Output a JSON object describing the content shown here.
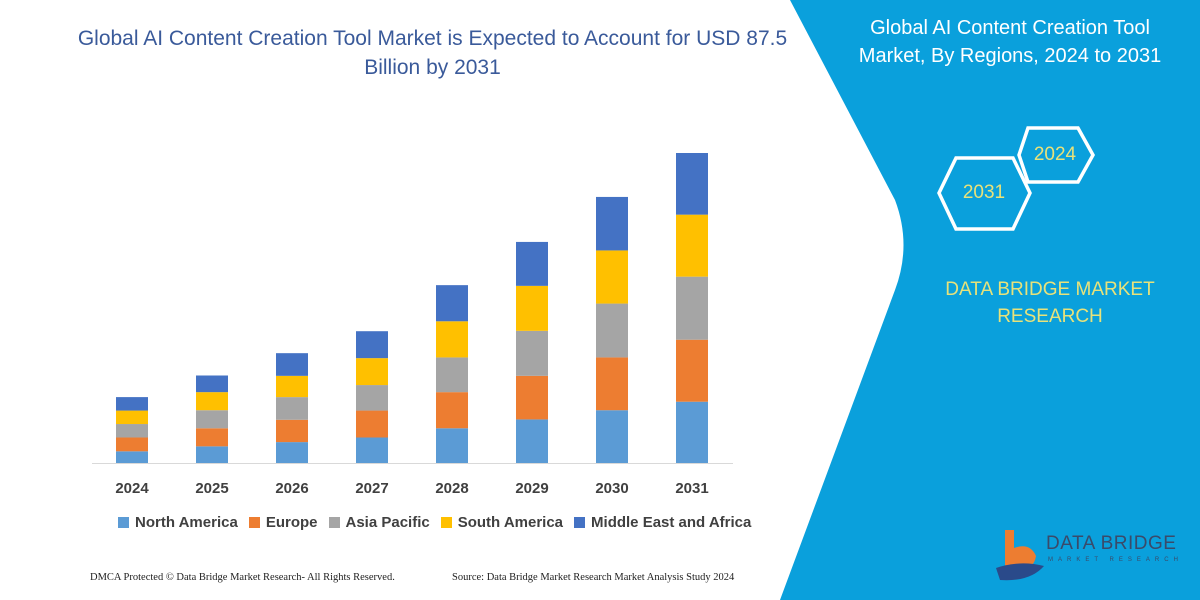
{
  "colors": {
    "panel": "#0aa0dc",
    "title": "#3a5a9a",
    "highlight": "#e8e27a"
  },
  "side_panel": {
    "title": "Global AI Content Creation Tool Market, By Regions, 2024 to 2031",
    "hex_start": "2024",
    "hex_end": "2031",
    "brand_text": "DATA BRIDGE MARKET RESEARCH",
    "logo_text": "DATA BRIDGE",
    "logo_subtext": "MARKET RESEARCH"
  },
  "footer": {
    "left": "DMCA Protected © Data Bridge Market Research-  All Rights Reserved.",
    "right": "Source: Data Bridge Market Research  Market Analysis Study 2024"
  },
  "chart_data": {
    "type": "bar",
    "stacked": true,
    "title": "Global AI Content Creation Tool Market is Expected to Account for USD 87.5 Billion by 2031",
    "xlabel": "",
    "ylabel": "",
    "grid": false,
    "legend_position": "bottom",
    "categories": [
      "2024",
      "2025",
      "2026",
      "2027",
      "2028",
      "2029",
      "2030",
      "2031"
    ],
    "series": [
      {
        "name": "North America",
        "color": "#5b9bd5",
        "values": [
          3.3,
          4.7,
          5.9,
          7.2,
          9.8,
          12.3,
          14.9,
          17.3
        ]
      },
      {
        "name": "Europe",
        "color": "#ed7d31",
        "values": [
          3.9,
          5.1,
          6.3,
          7.6,
          10.2,
          12.3,
          14.9,
          17.5
        ]
      },
      {
        "name": "Asia Pacific",
        "color": "#a5a5a5",
        "values": [
          3.8,
          5.1,
          6.4,
          7.2,
          9.8,
          12.7,
          15.2,
          17.8
        ]
      },
      {
        "name": "South America",
        "color": "#ffc000",
        "values": [
          3.8,
          5.1,
          6.0,
          7.6,
          10.2,
          12.7,
          15.0,
          17.5
        ]
      },
      {
        "name": "Middle East and Africa",
        "color": "#4472c4",
        "values": [
          3.8,
          4.7,
          6.4,
          7.6,
          10.2,
          12.4,
          15.1,
          17.4
        ]
      }
    ],
    "ylim": [
      0,
      87.5
    ]
  }
}
